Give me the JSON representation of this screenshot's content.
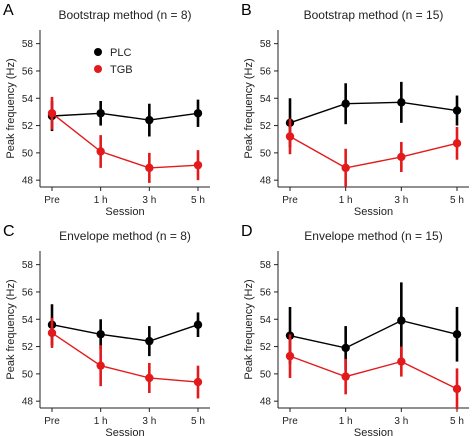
{
  "legend": {
    "entries": [
      {
        "label": "PLC",
        "color": "#000000"
      },
      {
        "label": "TGB",
        "color": "#e31a1c"
      }
    ],
    "placement": "top-left of panel A"
  },
  "chart_data": [
    {
      "letter": "A",
      "type": "line",
      "title": "Bootstrap method (n = 8)",
      "xlabel": "Session",
      "ylabel": "Peak frequency (Hz)",
      "categories": [
        "Pre",
        "1 h",
        "3 h",
        "5 h"
      ],
      "ylim": [
        47.5,
        59
      ],
      "yticks": [
        48,
        50,
        52,
        54,
        56,
        58
      ],
      "grid": false,
      "series": [
        {
          "name": "PLC",
          "color": "#000000",
          "values": [
            52.7,
            52.9,
            52.4,
            52.9
          ],
          "errors": [
            1.1,
            0.9,
            1.2,
            1.0
          ]
        },
        {
          "name": "TGB",
          "color": "#e31a1c",
          "values": [
            52.9,
            50.1,
            48.9,
            49.1
          ],
          "errors": [
            1.2,
            1.2,
            1.1,
            1.1
          ]
        }
      ]
    },
    {
      "letter": "B",
      "type": "line",
      "title": "Bootstrap method (n = 15)",
      "xlabel": "Session",
      "ylabel": "Peak frequency (Hz)",
      "categories": [
        "Pre",
        "1 h",
        "3 h",
        "5 h"
      ],
      "ylim": [
        47.5,
        59
      ],
      "yticks": [
        48,
        50,
        52,
        54,
        56,
        58
      ],
      "grid": false,
      "series": [
        {
          "name": "PLC",
          "color": "#000000",
          "values": [
            52.2,
            53.6,
            53.7,
            53.1
          ],
          "errors": [
            1.8,
            1.5,
            1.5,
            1.1
          ]
        },
        {
          "name": "TGB",
          "color": "#e31a1c",
          "values": [
            51.2,
            48.9,
            49.7,
            50.7
          ],
          "errors": [
            1.3,
            1.4,
            1.1,
            1.2
          ]
        }
      ]
    },
    {
      "letter": "C",
      "type": "line",
      "title": "Envelope method (n = 8)",
      "xlabel": "Session",
      "ylabel": "Peak frequency (Hz)",
      "categories": [
        "Pre",
        "1 h",
        "3 h",
        "5 h"
      ],
      "ylim": [
        47.5,
        59
      ],
      "yticks": [
        48,
        50,
        52,
        54,
        56,
        58
      ],
      "grid": false,
      "series": [
        {
          "name": "PLC",
          "color": "#000000",
          "values": [
            53.6,
            52.9,
            52.4,
            53.6
          ],
          "errors": [
            1.5,
            1.1,
            1.1,
            0.9
          ]
        },
        {
          "name": "TGB",
          "color": "#e31a1c",
          "values": [
            53.0,
            50.6,
            49.7,
            49.4
          ],
          "errors": [
            1.1,
            1.5,
            1.1,
            1.2
          ]
        }
      ]
    },
    {
      "letter": "D",
      "type": "line",
      "title": "Envelope method (n = 15)",
      "xlabel": "Session",
      "ylabel": "Peak frequency (Hz)",
      "categories": [
        "Pre",
        "1 h",
        "3 h",
        "5 h"
      ],
      "ylim": [
        47.5,
        59
      ],
      "yticks": [
        48,
        50,
        52,
        54,
        56,
        58
      ],
      "grid": false,
      "series": [
        {
          "name": "PLC",
          "color": "#000000",
          "values": [
            52.8,
            51.9,
            53.9,
            52.9
          ],
          "errors": [
            2.1,
            1.6,
            2.8,
            2.0
          ]
        },
        {
          "name": "TGB",
          "color": "#e31a1c",
          "values": [
            51.3,
            49.8,
            50.9,
            48.9
          ],
          "errors": [
            1.6,
            1.3,
            1.1,
            1.5
          ]
        }
      ]
    }
  ]
}
